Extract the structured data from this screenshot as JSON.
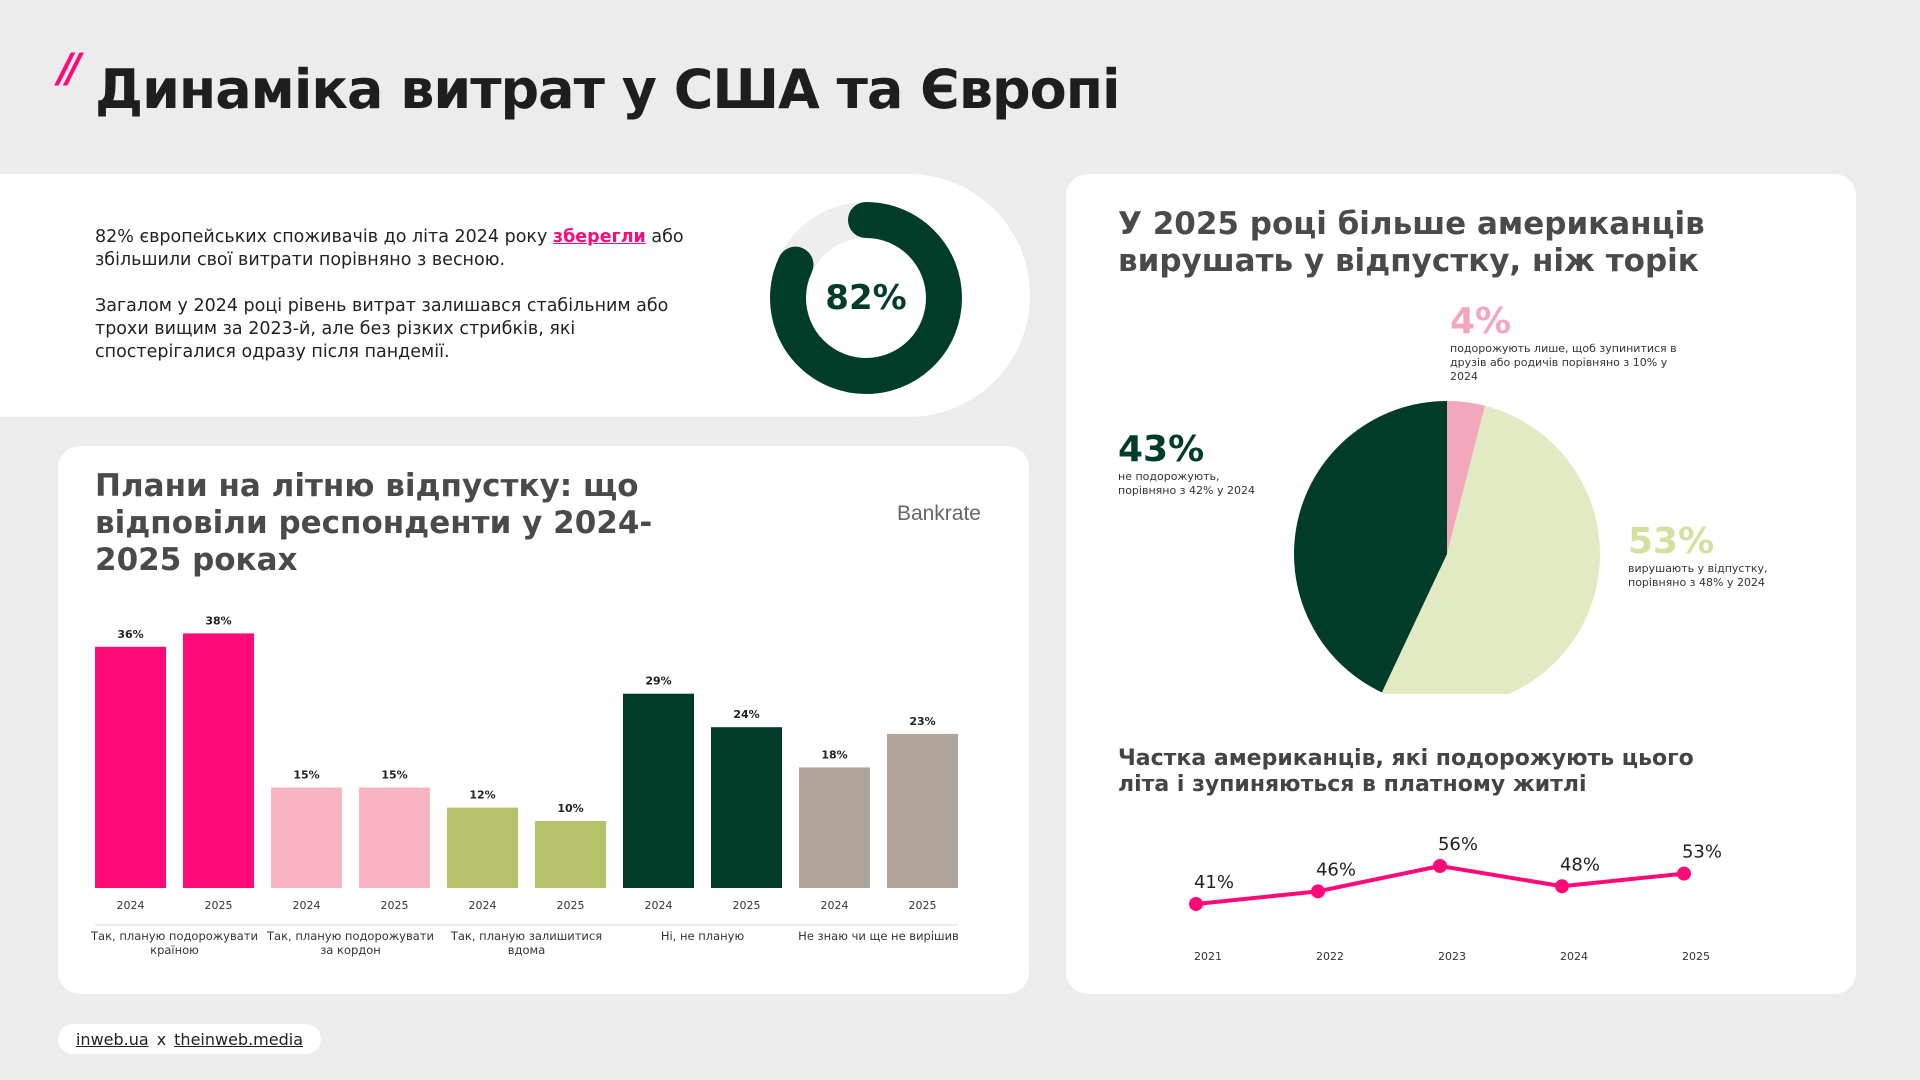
{
  "header": {
    "slashes": "//",
    "title": "Динаміка витрат у США та Європі"
  },
  "intro": {
    "p1_before": "82% європейських споживачів до літа 2024 року ",
    "p1_highlight": "зберегли",
    "p1_after": " або збільшили свої витрати порівняно з весною.",
    "p2": "Загалом у 2024 році рівень витрат залишався стабільним або трохи вищим за 2023-й, але без різких стрибків, які спостерігалися одразу після пандемії.",
    "donut_value": 82,
    "donut_label": "82%",
    "donut_color": "#003c28",
    "donut_track_color": "#eeeeee"
  },
  "bars_card": {
    "title": "Плани на літню відпустку: що відповіли респонденти у 2024-2025 роках",
    "source": "Bankrate"
  },
  "pie_card": {
    "title": "У 2025 році більше американців вирушать у відпустку, ніж торік",
    "labels": {
      "a_pct": "4%",
      "a_desc": "подорожують лише, щоб зупинитися в друзів або родичів порівняно з 10% у 2024",
      "b_pct": "43%",
      "b_desc": "не подорожують, порівняно з 42% у 2024",
      "c_pct": "53%",
      "c_desc": "вирушають у відпустку, порівняно з 48% у 2024"
    }
  },
  "line_card": {
    "title": "Частка американців, які подорожують цього літа і зупиняються в платному житлі"
  },
  "footer": {
    "left": "inweb.ua",
    "sep": "x",
    "right": "theinweb.media"
  },
  "chart_data": [
    {
      "type": "bar",
      "groups": [
        {
          "label": "Так, планую подорожувати країною",
          "color": "#ff0a78",
          "years": [
            "2024",
            "2025"
          ],
          "values": [
            36,
            38
          ],
          "value_labels": [
            "36%",
            "38%"
          ]
        },
        {
          "label": "Так, планую подорожувати за кордон",
          "color": "#f8b4c2",
          "years": [
            "2024",
            "2025"
          ],
          "values": [
            15,
            15
          ],
          "value_labels": [
            "15%",
            "15%"
          ]
        },
        {
          "label": "Так, планую залишитися вдома",
          "color": "#b5c26a",
          "years": [
            "2024",
            "2025"
          ],
          "values": [
            12,
            10
          ],
          "value_labels": [
            "12%",
            "10%"
          ]
        },
        {
          "label": "Ні, не планую",
          "color": "#003c28",
          "years": [
            "2024",
            "2025"
          ],
          "values": [
            29,
            24
          ],
          "value_labels": [
            "29%",
            "24%"
          ]
        },
        {
          "label": "Не знаю чи ще не вирішив",
          "color": "#b0a39a",
          "years": [
            "2024",
            "2025"
          ],
          "values": [
            18,
            23
          ],
          "value_labels": [
            "18%",
            "23%"
          ]
        }
      ],
      "ylim": [
        0,
        40
      ]
    },
    {
      "type": "pie",
      "slices": [
        {
          "value": 4,
          "color": "#f2a7bd"
        },
        {
          "value": 53,
          "color": "#e1eac2"
        },
        {
          "value": 43,
          "color": "#003c28"
        }
      ]
    },
    {
      "type": "line",
      "x": [
        "2021",
        "2022",
        "2023",
        "2024",
        "2025"
      ],
      "values": [
        41,
        46,
        56,
        48,
        53
      ],
      "value_labels": [
        "41%",
        "46%",
        "56%",
        "48%",
        "53%"
      ],
      "color": "#ff0a78"
    }
  ]
}
